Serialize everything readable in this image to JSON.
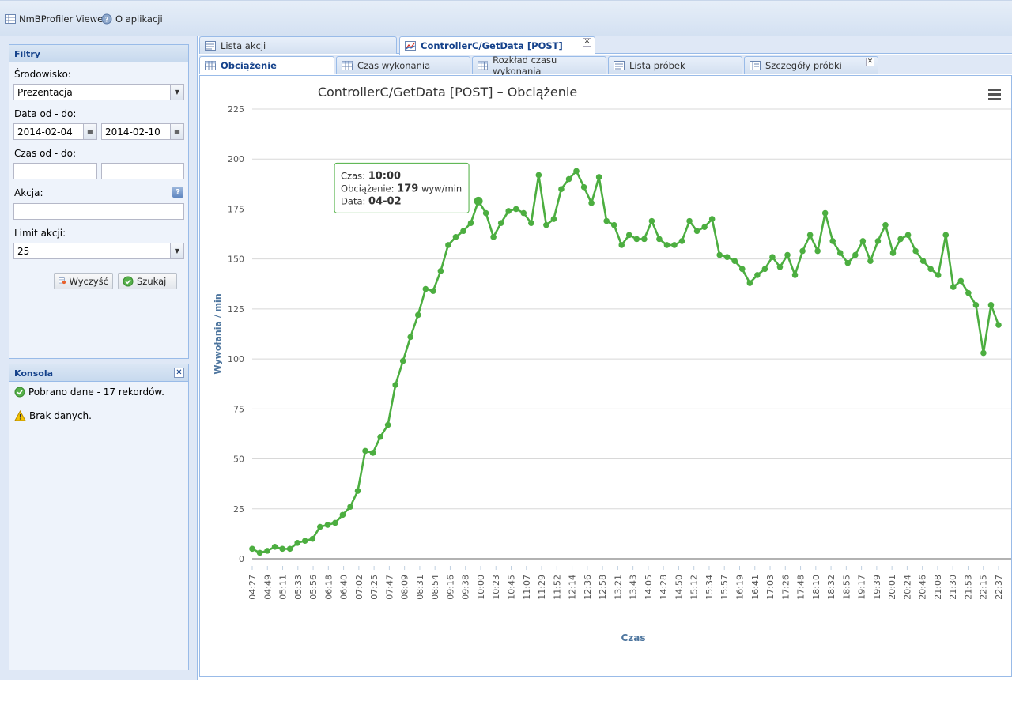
{
  "app": {
    "title": "NmBProfiler Viewer",
    "about": "O aplikacji"
  },
  "filters": {
    "title": "Filtry",
    "env_label": "Środowisko:",
    "env_value": "Prezentacja",
    "date_label": "Data od - do:",
    "date_from": "2014-02-04",
    "date_to": "2014-02-10",
    "time_label": "Czas od - do:",
    "time_from": "",
    "time_to": "",
    "action_label": "Akcja:",
    "action_value": "",
    "limit_label": "Limit akcji:",
    "limit_value": "25",
    "clear_label": "Wyczyść",
    "search_label": "Szukaj",
    "help_icon": "?"
  },
  "console": {
    "title": "Konsola",
    "messages": [
      {
        "icon": "success-icon",
        "text": "Pobrano dane - 17 rekordów."
      },
      {
        "icon": "warning-icon",
        "text": "Brak danych."
      }
    ]
  },
  "tabs_main": [
    {
      "label": "Lista akcji",
      "active": false
    },
    {
      "label": "ControllerC/GetData [POST]",
      "active": true
    }
  ],
  "tabs_sub": [
    {
      "label": "Obciążenie",
      "active": true
    },
    {
      "label": "Czas wykonania",
      "active": false
    },
    {
      "label": "Rozkład czasu wykonania",
      "active": false
    },
    {
      "label": "Lista próbek",
      "active": false
    },
    {
      "label": "Szczegóły próbki",
      "active": false
    }
  ],
  "tooltip": {
    "czas_label": "Czas:",
    "czas_value": "10:00",
    "load_label": "Obciążenie:",
    "load_value": "179",
    "load_unit": "wyw/min",
    "data_label": "Data:",
    "data_value": "04-02",
    "point_index": 30
  },
  "colors": {
    "series": "#4cae40",
    "accent": "#15428b",
    "axis_title": "#4d759e"
  },
  "chart_data": {
    "type": "line",
    "title": "ControllerC/GetData [POST] – Obciążenie",
    "xlabel": "Czas",
    "ylabel": "Wywołania / min",
    "ylim": [
      0,
      225
    ],
    "yticks": [
      0,
      25,
      50,
      75,
      100,
      125,
      150,
      175,
      200,
      225
    ],
    "grid": true,
    "x_tick_labels": [
      "04:27",
      "04:49",
      "05:11",
      "05:33",
      "05:56",
      "06:18",
      "06:40",
      "07:02",
      "07:25",
      "07:47",
      "08:09",
      "08:31",
      "08:54",
      "09:16",
      "09:38",
      "10:00",
      "10:23",
      "10:45",
      "11:07",
      "11:29",
      "11:52",
      "12:14",
      "12:36",
      "12:58",
      "13:21",
      "13:43",
      "14:05",
      "14:28",
      "14:50",
      "15:12",
      "15:34",
      "15:57",
      "16:19",
      "16:41",
      "17:03",
      "17:26",
      "17:48",
      "18:10",
      "18:32",
      "18:55",
      "19:17",
      "19:39",
      "20:01",
      "20:24",
      "20:46",
      "21:08",
      "21:30",
      "21:53",
      "22:15",
      "22:37"
    ],
    "series": [
      {
        "values": [
          5,
          3,
          4,
          6,
          5,
          5,
          8,
          9,
          10,
          16,
          17,
          18,
          22,
          26,
          34,
          54,
          53,
          61,
          67,
          87,
          99,
          111,
          122,
          135,
          134,
          144,
          157,
          161,
          164,
          168,
          179,
          173,
          161,
          168,
          174,
          175,
          173,
          168,
          192,
          167,
          170,
          185,
          190,
          194,
          186,
          178,
          191,
          169,
          167,
          157,
          162,
          160,
          160,
          169,
          160,
          157,
          157,
          159,
          169,
          164,
          166,
          170,
          152,
          151,
          149,
          145,
          138,
          142,
          145,
          151,
          146,
          152,
          142,
          154,
          162,
          154,
          173,
          159,
          153,
          148,
          152,
          159,
          149,
          159,
          167,
          153,
          160,
          162,
          154,
          149,
          145,
          142,
          162,
          136,
          139,
          133,
          127,
          103,
          127,
          117
        ]
      }
    ]
  }
}
